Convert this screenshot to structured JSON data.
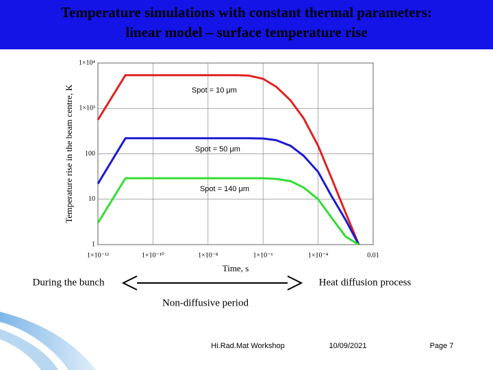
{
  "header": {
    "title_lines": [
      "Temperature  simulations with constant thermal parameters:",
      "linear model – surface temperature rise"
    ]
  },
  "chart_data": {
    "type": "line",
    "x_label": "Time, s",
    "y_label": "Temperature  rise in the beam centre,  K",
    "log_x": true,
    "log_y": true,
    "grid": true,
    "x": [
      1e-12,
      1e-11,
      1e-10,
      1e-09,
      1e-08,
      1e-07,
      3e-07,
      1e-06,
      3e-06,
      1e-05,
      3e-05,
      0.0001,
      0.0003,
      0.001,
      0.003
    ],
    "series": [
      {
        "name": "Spot = 10 μm",
        "color": "#e02020",
        "values": [
          560,
          5400,
          5400,
          5400,
          5400,
          5400,
          5300,
          4500,
          3000,
          1500,
          600,
          150,
          30,
          5,
          1
        ]
      },
      {
        "name": "Spot = 50 μm",
        "color": "#1a1ad0",
        "values": [
          22,
          220,
          220,
          220,
          220,
          220,
          220,
          218,
          200,
          150,
          90,
          40,
          12,
          3.5,
          1
        ]
      },
      {
        "name": "Spot = 140 μm",
        "color": "#33dd33",
        "values": [
          3,
          29,
          29,
          29,
          29,
          29,
          29,
          29,
          28,
          25,
          18,
          10,
          4,
          1.5,
          1
        ]
      }
    ],
    "xlim": [
      1e-12,
      0.01
    ],
    "xticks": [
      {
        "value": 1e-12,
        "label": "1×10⁻¹²"
      },
      {
        "value": 1e-10,
        "label": "1×10⁻¹⁰"
      },
      {
        "value": 1e-08,
        "label": "1×10⁻⁸"
      },
      {
        "value": 1e-06,
        "label": "1×10⁻⁶"
      },
      {
        "value": 0.0001,
        "label": "1×10⁻⁴"
      },
      0.01
    ],
    "ylim": [
      1,
      10000
    ],
    "yticks": [
      1,
      10,
      100,
      {
        "value": 1000,
        "label": "1×10³"
      },
      {
        "value": 10000,
        "label": "1×10⁴"
      }
    ]
  },
  "annotations": {
    "left_phase": "During the bunch",
    "right_phase": "Heat diffusion process",
    "period": "Non-diffusive period"
  },
  "footer": {
    "event": "Hi.Rad.Mat  Workshop",
    "date": "10/09/2021",
    "page": "Page 7"
  }
}
